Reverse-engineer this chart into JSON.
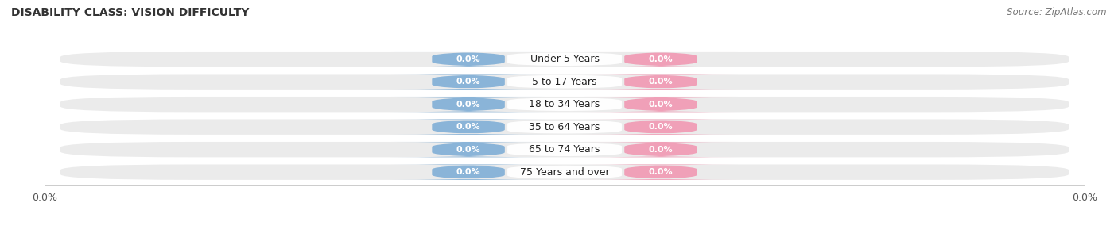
{
  "title": "DISABILITY CLASS: VISION DIFFICULTY",
  "source": "Source: ZipAtlas.com",
  "categories": [
    "Under 5 Years",
    "5 to 17 Years",
    "18 to 34 Years",
    "35 to 64 Years",
    "65 to 74 Years",
    "75 Years and over"
  ],
  "male_values": [
    0.0,
    0.0,
    0.0,
    0.0,
    0.0,
    0.0
  ],
  "female_values": [
    0.0,
    0.0,
    0.0,
    0.0,
    0.0,
    0.0
  ],
  "male_color": "#8ab4d8",
  "female_color": "#f0a0b8",
  "row_bg_color": "#ebebeb",
  "row_bg_color_alt": "#f5f5f5",
  "label_color": "#222222",
  "value_color_male": "#c8d8e8",
  "value_color_female": "#f8c8d4",
  "xlim_left": -1.0,
  "xlim_right": 1.0,
  "title_fontsize": 10,
  "source_fontsize": 8.5,
  "tick_fontsize": 9,
  "cat_fontsize": 9,
  "value_fontsize": 8,
  "legend_fontsize": 9,
  "background_color": "#ffffff"
}
